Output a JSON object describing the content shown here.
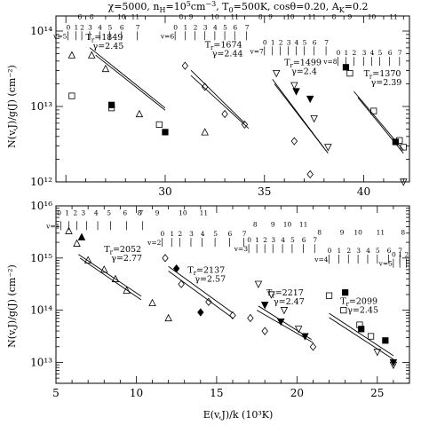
{
  "chart_data": {
    "title": "χ=5000, nH=10^5cm^-3, T0=500K, cosθ=0.20, AK=0.2",
    "title_parts": {
      "chi": "χ=5000, n",
      "nh_sub": "H",
      "nh_val": "=10",
      "nh_exp": "5",
      "nh_unit": "cm",
      "nh_unit_exp": "−3",
      "t0": ", T",
      "t0_sub": "0",
      "t0_val": "=500K, cosθ=0.20, A",
      "ak_sub": "K",
      "ak_val": "=0.2"
    },
    "xlabel": "E(v,J)/k (10³K)",
    "ylabel": "N(v,J)/g(J) (cm⁻²)",
    "panels": [
      {
        "id": "top",
        "type": "scatter",
        "xlim": [
          24.5,
          42.3
        ],
        "ylim_log10": [
          12,
          14.2
        ],
        "x_ticks": [
          25,
          30,
          35,
          40
        ],
        "x_tick_labels": [
          "",
          "30",
          "35",
          "40"
        ],
        "y_ticks_log10": [
          12,
          13,
          14
        ],
        "y_tick_labels": [
          "10¹²",
          "10¹³",
          "10¹⁴"
        ],
        "bands": [
          {
            "v": "v=5",
            "fit_label": "Tr=1849",
            "gamma_label": "γ=2.45",
            "label_x": 26.0,
            "label_logy": 13.88,
            "fit": [
              [
                26.2,
                13.78
              ],
              [
                30.0,
                12.98
              ]
            ],
            "fit2": [
              [
                26.5,
                13.68
              ],
              [
                30.0,
                12.95
              ]
            ],
            "J_labels": [
              "6",
              "8",
              "10",
              "11"
            ],
            "J_x": [
              25.7,
              26.3,
              27.8,
              28.5
            ],
            "J_logy": [
              14.16,
              14.16,
              14.16,
              14.16
            ],
            "tick_labels": [
              "0",
              "1",
              "2",
              "3",
              "4",
              "5",
              "6",
              "7"
            ],
            "tick_x": [
              25.1,
              25.5,
              25.8,
              26.2,
              26.7,
              27.2,
              27.8,
              28.6
            ],
            "tick_logy": 14.02,
            "open_tri": [
              [
                25.3,
                13.68
              ],
              [
                26.3,
                13.68
              ],
              [
                27.0,
                13.5
              ],
              [
                28.7,
                12.9
              ]
            ],
            "open_sq": [
              [
                25.3,
                13.14
              ],
              [
                27.3,
                12.98
              ],
              [
                29.7,
                12.76
              ]
            ],
            "filled_sq": [
              [
                27.3,
                13.02
              ],
              [
                30.0,
                12.66
              ]
            ]
          },
          {
            "v": "v=6",
            "fit_label": "Tr=1674",
            "gamma_label": "γ=2.44",
            "label_x": 32.0,
            "label_logy": 13.78,
            "fit": [
              [
                31.3,
                13.48
              ],
              [
                34.0,
                12.78
              ]
            ],
            "fit2": [
              [
                31.3,
                13.41
              ],
              [
                34.2,
                12.71
              ]
            ],
            "J_labels": [
              "8",
              "9",
              "10",
              "11"
            ],
            "J_x": [
              30.8,
              31.3,
              32.5,
              33.5
            ],
            "J_logy": [
              14.16,
              14.16,
              14.16,
              14.16
            ],
            "tick_labels": [
              "0",
              "1",
              "2",
              "3",
              "4",
              "5",
              "6",
              "7"
            ],
            "tick_x": [
              30.5,
              31.0,
              31.5,
              32.0,
              32.5,
              33.0,
              33.5,
              34.1
            ],
            "tick_logy": 14.02,
            "open_dia": [
              [
                31.0,
                13.54
              ],
              [
                32.0,
                13.26
              ],
              [
                33.0,
                12.9
              ],
              [
                34.0,
                12.76
              ]
            ],
            "open_tri": [
              [
                32.0,
                12.66
              ]
            ]
          },
          {
            "v": "v=7",
            "fit_label": "Tr=1499",
            "gamma_label": "γ=2.4",
            "label_x": 36.0,
            "label_logy": 13.55,
            "fit": [
              [
                35.4,
                13.36
              ],
              [
                38.0,
                12.45
              ]
            ],
            "fit2": [
              [
                35.5,
                13.3
              ],
              [
                38.2,
                12.38
              ]
            ],
            "J_labels": [
              "8",
              "9",
              "10",
              "11"
            ],
            "J_x": [
              34.8,
              35.3,
              36.3,
              37.4
            ],
            "J_logy": [
              14.16,
              14.16,
              14.16,
              14.16
            ],
            "tick_labels": [
              "0",
              "1",
              "2",
              "3",
              "4",
              "5",
              "6",
              "7"
            ],
            "tick_x": [
              35.0,
              35.4,
              35.8,
              36.2,
              36.6,
              37.0,
              37.5,
              38.1
            ],
            "tick_logy": 13.82,
            "open_tri_down": [
              [
                35.6,
                13.44
              ],
              [
                36.5,
                13.28
              ],
              [
                37.5,
                12.84
              ],
              [
                38.2,
                12.46
              ]
            ],
            "filled_tri_down": [
              [
                36.6,
                13.2
              ],
              [
                37.3,
                13.1
              ]
            ],
            "open_dia": [
              [
                36.5,
                12.54
              ],
              [
                37.3,
                12.1
              ]
            ]
          },
          {
            "v": "v=8",
            "fit_label": "Tr=1370",
            "gamma_label": "γ=2.39",
            "label_x": 40.0,
            "label_logy": 13.4,
            "fit": [
              [
                39.5,
                13.2
              ],
              [
                42.0,
                12.42
              ]
            ],
            "fit2": [
              [
                39.7,
                13.12
              ],
              [
                42.0,
                12.38
              ]
            ],
            "J_labels": [
              "8",
              "9",
              "10",
              "11"
            ],
            "J_x": [
              38.5,
              39.3,
              40.4,
              41.5
            ],
            "J_logy": [
              14.16,
              14.16,
              14.16,
              14.16
            ],
            "tick_labels": [
              "0",
              "1",
              "2",
              "3",
              "4",
              "5",
              "6",
              "7"
            ],
            "tick_x": [
              38.7,
              39.1,
              39.5,
              40.0,
              40.4,
              40.8,
              41.3,
              41.8
            ],
            "tick_logy": 13.68,
            "open_sq": [
              [
                39.3,
                13.44
              ],
              [
                40.5,
                12.94
              ],
              [
                41.8,
                12.55
              ],
              [
                42.0,
                12.46
              ]
            ],
            "filled_sq": [
              [
                39.1,
                13.52
              ],
              [
                41.6,
                12.53
              ]
            ],
            "open_tri_down": [
              [
                42.0,
                12.0
              ]
            ]
          }
        ]
      },
      {
        "id": "bottom",
        "type": "scatter",
        "xlim": [
          5.0,
          27.0
        ],
        "ylim_log10": [
          12.6,
          16.0
        ],
        "x_ticks": [
          5,
          10,
          15,
          20,
          25
        ],
        "x_tick_labels": [
          "5",
          "10",
          "15",
          "20",
          "25"
        ],
        "y_ticks_log10": [
          13,
          14,
          15,
          16
        ],
        "y_tick_labels": [
          "10¹³",
          "10¹⁴",
          "10¹⁵",
          "10¹⁶"
        ],
        "bands": [
          {
            "v": "v=1",
            "fit_label": "Tr=2052",
            "gamma_label": "γ=2.77",
            "label_x": 8.0,
            "label_logy": 15.12,
            "fit": [
              [
                6.4,
                15.07
              ],
              [
                10.3,
                14.27
              ]
            ],
            "fit2": [
              [
                6.5,
                15.0
              ],
              [
                10.3,
                14.2
              ]
            ],
            "J_labels": [
              "0",
              "1",
              "2",
              "3",
              "4",
              "5",
              "6",
              "7"
            ],
            "J_x": [
              5.2,
              5.7,
              6.2,
              6.7,
              7.5,
              8.3,
              9.3,
              10.3
            ],
            "J_logy": [
              15.82,
              15.82,
              15.82,
              15.82,
              15.82,
              15.82,
              15.82,
              15.82
            ],
            "tick_labels": [],
            "tick_x": [
              5.3,
              5.8,
              6.3,
              6.9,
              7.6,
              8.4,
              9.4,
              10.4
            ],
            "tick_logy": 15.74,
            "open_tri": [
              [
                5.8,
                15.52
              ],
              [
                6.3,
                15.28
              ],
              [
                7.0,
                14.96
              ],
              [
                8.0,
                14.78
              ],
              [
                8.7,
                14.6
              ],
              [
                9.4,
                14.38
              ]
            ],
            "filled_tri": [
              [
                6.6,
                15.4
              ]
            ]
          },
          {
            "v": "v=2",
            "fit_label": "Tr=2137",
            "gamma_label": "γ=2.57",
            "label_x": 13.2,
            "label_logy": 14.72,
            "fit": [
              [
                12.0,
                14.84
              ],
              [
                16.0,
                13.95
              ]
            ],
            "fit2": [
              [
                12.0,
                14.75
              ],
              [
                16.0,
                13.85
              ]
            ],
            "J_labels": [
              "8",
              "9",
              "10",
              "11"
            ],
            "J_x": [
              10.2,
              11.3,
              12.9,
              14.2
            ],
            "J_logy": [
              15.82,
              15.82,
              15.82,
              15.82
            ],
            "tick_labels": [
              "0",
              "1",
              "2",
              "3",
              "4",
              "5",
              "6",
              "7"
            ],
            "tick_x": [
              11.6,
              12.2,
              12.7,
              13.4,
              14.1,
              14.9,
              15.8,
              16.7
            ],
            "tick_logy": 15.42,
            "open_dia": [
              [
                11.8,
                15.0
              ],
              [
                12.8,
                14.5
              ],
              [
                14.5,
                14.16
              ],
              [
                16.0,
                13.9
              ]
            ],
            "filled_dia": [
              [
                12.5,
                14.8
              ],
              [
                14.0,
                13.96
              ]
            ],
            "open_tri": [
              [
                11.0,
                14.14
              ],
              [
                12.0,
                13.85
              ]
            ]
          },
          {
            "v": "v=3",
            "fit_label": "Tr=2217",
            "gamma_label": "γ=2.47",
            "label_x": 18.1,
            "label_logy": 14.28,
            "fit": [
              [
                17.6,
                14.08
              ],
              [
                20.9,
                13.44
              ]
            ],
            "fit2": [
              [
                17.5,
                14.0
              ],
              [
                21.0,
                13.38
              ]
            ],
            "J_labels": [
              "8",
              "9",
              "10",
              "11"
            ],
            "J_x": [
              17.4,
              18.5,
              19.4,
              20.4
            ],
            "J_logy": [
              15.6,
              15.6,
              15.6,
              15.6
            ],
            "tick_labels": [
              "0",
              "1",
              "2",
              "3",
              "4",
              "5",
              "6",
              "7"
            ],
            "tick_x": [
              17.0,
              17.5,
              18.0,
              18.5,
              19.1,
              19.7,
              20.4,
              21.1
            ],
            "tick_logy": 15.3,
            "open_tri_down": [
              [
                17.6,
                14.5
              ],
              [
                18.4,
                14.3
              ],
              [
                19.2,
                14.0
              ],
              [
                20.1,
                13.64
              ]
            ],
            "filled_tri_down": [
              [
                18.0,
                14.1
              ],
              [
                19.0,
                13.78
              ],
              [
                20.5,
                13.5
              ]
            ],
            "open_dia": [
              [
                17.1,
                13.85
              ],
              [
                18.0,
                13.6
              ],
              [
                21.0,
                13.3
              ]
            ]
          },
          {
            "v": "v=4",
            "fit_label": "Tr=2099",
            "gamma_label": "γ=2.45",
            "label_x": 22.7,
            "label_logy": 14.12,
            "fit": [
              [
                22.0,
                13.94
              ],
              [
                26.0,
                13.13
              ]
            ],
            "fit2": [
              [
                22.0,
                13.86
              ],
              [
                26.0,
                13.06
              ]
            ],
            "J_labels": [
              "8",
              "9",
              "10",
              "11"
            ],
            "J_x": [
              21.4,
              22.8,
              23.8,
              25.2
            ],
            "J_logy": [
              15.45,
              15.45,
              15.45,
              15.45
            ],
            "tick_labels": [
              "0",
              "1",
              "2",
              "3",
              "4",
              "5",
              "6",
              "7"
            ],
            "tick_x": [
              22.0,
              22.6,
              23.2,
              23.8,
              24.4,
              25.0,
              25.7,
              26.4
            ],
            "tick_logy": 15.1,
            "open_sq": [
              [
                22.0,
                14.28
              ],
              [
                22.9,
                14.0
              ],
              [
                23.9,
                13.72
              ],
              [
                24.6,
                13.5
              ]
            ],
            "filled_sq": [
              [
                23.0,
                14.34
              ],
              [
                24.0,
                13.64
              ],
              [
                25.5,
                13.42
              ]
            ],
            "open_tri_down": [
              [
                25.0,
                13.2
              ],
              [
                26.0,
                12.95
              ]
            ],
            "filled_tri_down": [
              [
                26.0,
                13.0
              ]
            ]
          },
          {
            "v": "v=5",
            "J_labels": [
              "8"
            ],
            "J_x": [
              26.6
            ],
            "J_logy": [
              15.45
            ],
            "tick_labels": [
              "0",
              "1",
              "2"
            ],
            "tick_x": [
              26.0,
              26.4,
              26.8
            ],
            "tick_logy": 15.02
          }
        ]
      }
    ]
  }
}
